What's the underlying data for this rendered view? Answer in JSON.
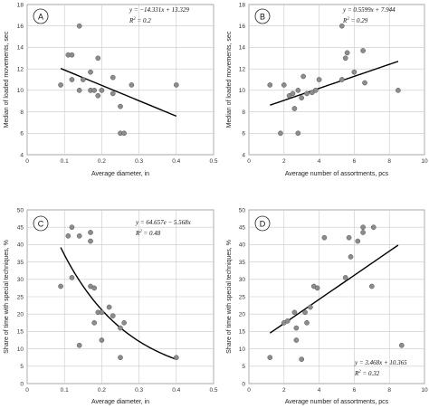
{
  "colors": {
    "points": "#8c8c8c",
    "fit_line": "#000000",
    "grid": "#c8c8c8"
  },
  "chart_data": [
    {
      "panel": "A",
      "type": "scatter",
      "xlabel": "Average diameter, in",
      "ylabel": "Median of loaded movements, sec",
      "xlim": [
        0,
        0.5
      ],
      "ylim": [
        4,
        18
      ],
      "xticks": [
        0,
        0.1,
        0.2,
        0.3,
        0.4,
        0.5
      ],
      "yticks": [
        4,
        6,
        8,
        10,
        12,
        14,
        16,
        18
      ],
      "grid": true,
      "points": [
        [
          0.09,
          10.5
        ],
        [
          0.11,
          13.3
        ],
        [
          0.12,
          13.3
        ],
        [
          0.12,
          11
        ],
        [
          0.14,
          16
        ],
        [
          0.14,
          10
        ],
        [
          0.15,
          11
        ],
        [
          0.17,
          11.7
        ],
        [
          0.17,
          10
        ],
        [
          0.18,
          10
        ],
        [
          0.19,
          13
        ],
        [
          0.19,
          9.5
        ],
        [
          0.2,
          10
        ],
        [
          0.23,
          11.2
        ],
        [
          0.23,
          9.7
        ],
        [
          0.25,
          8.5
        ],
        [
          0.25,
          6
        ],
        [
          0.26,
          6
        ],
        [
          0.28,
          10.5
        ],
        [
          0.4,
          10.5
        ]
      ],
      "fit": {
        "kind": "linear",
        "slope": -14.331,
        "intercept": 13.329,
        "x_range": [
          0.09,
          0.4
        ]
      },
      "equation": "y = −14.331x + 13.329",
      "r2_label": "R",
      "r2_exp": "2",
      "r2_value": " = 0.2",
      "legend_position": "top-right"
    },
    {
      "panel": "B",
      "type": "scatter",
      "xlabel": "Average number of assortments, pcs",
      "ylabel": "Median of loaded movements, sec",
      "xlim": [
        0,
        10
      ],
      "ylim": [
        4,
        18
      ],
      "xticks": [
        0,
        2,
        4,
        6,
        8,
        10
      ],
      "yticks": [
        4,
        6,
        8,
        10,
        12,
        14,
        16,
        18
      ],
      "grid": true,
      "points": [
        [
          1.2,
          10.5
        ],
        [
          1.8,
          6
        ],
        [
          2,
          10.5
        ],
        [
          2.3,
          9.5
        ],
        [
          2.5,
          9.7
        ],
        [
          2.6,
          8.3
        ],
        [
          2.8,
          6
        ],
        [
          2.8,
          10
        ],
        [
          3,
          9.3
        ],
        [
          3.1,
          11.3
        ],
        [
          3.3,
          9.7
        ],
        [
          3.6,
          9.8
        ],
        [
          3.8,
          10
        ],
        [
          4,
          11
        ],
        [
          5.3,
          16
        ],
        [
          5.3,
          11
        ],
        [
          5.5,
          13
        ],
        [
          5.6,
          13.5
        ],
        [
          6,
          11.7
        ],
        [
          6.5,
          13.7
        ],
        [
          6.6,
          10.7
        ],
        [
          8.5,
          10
        ]
      ],
      "fit": {
        "kind": "linear",
        "slope": 0.5599,
        "intercept": 7.944,
        "x_range": [
          1.2,
          8.5
        ]
      },
      "equation": "y = 0.5599x + 7.944",
      "r2_label": "R",
      "r2_exp": "2",
      "r2_value": " = 0.29",
      "legend_position": "top-right"
    },
    {
      "panel": "C",
      "type": "scatter",
      "xlabel": "Average diameter, in",
      "ylabel": "Share of time with special techniques, %",
      "xlim": [
        0,
        0.5
      ],
      "ylim": [
        0,
        50
      ],
      "xticks": [
        0,
        0.1,
        0.2,
        0.3,
        0.4,
        0.5
      ],
      "yticks": [
        0,
        5,
        10,
        15,
        20,
        25,
        30,
        35,
        40,
        45,
        50
      ],
      "grid": true,
      "points": [
        [
          0.09,
          28
        ],
        [
          0.11,
          42.5
        ],
        [
          0.12,
          45
        ],
        [
          0.12,
          30.5
        ],
        [
          0.14,
          42.5
        ],
        [
          0.14,
          11
        ],
        [
          0.17,
          43.5
        ],
        [
          0.17,
          41
        ],
        [
          0.17,
          28
        ],
        [
          0.18,
          27.5
        ],
        [
          0.18,
          17.5
        ],
        [
          0.19,
          20.5
        ],
        [
          0.2,
          12.5
        ],
        [
          0.2,
          20.5
        ],
        [
          0.22,
          22
        ],
        [
          0.23,
          19.5
        ],
        [
          0.25,
          7.5
        ],
        [
          0.25,
          16
        ],
        [
          0.26,
          17.5
        ],
        [
          0.4,
          7.5
        ]
      ],
      "fit": {
        "kind": "exponential",
        "a": 64.657,
        "b": -5.568,
        "x_range": [
          0.09,
          0.4
        ]
      },
      "equation": "y = 64.657e − 5.568x",
      "r2_label": "R",
      "r2_exp": "2",
      "r2_value": " = 0.48",
      "legend_position": "top-right"
    },
    {
      "panel": "D",
      "type": "scatter",
      "xlabel": "Average number of assortments, pcs",
      "ylabel": "Share of time with special techniques, %",
      "xlim": [
        0,
        10
      ],
      "ylim": [
        0,
        50
      ],
      "xticks": [
        0,
        2,
        4,
        6,
        8,
        10
      ],
      "yticks": [
        0,
        5,
        10,
        15,
        20,
        25,
        30,
        35,
        40,
        45,
        50
      ],
      "grid": true,
      "points": [
        [
          1.2,
          7.5
        ],
        [
          2,
          17.5
        ],
        [
          2.2,
          18
        ],
        [
          2.6,
          20.5
        ],
        [
          2.7,
          12.5
        ],
        [
          2.7,
          16
        ],
        [
          3,
          7
        ],
        [
          3.2,
          20.5
        ],
        [
          3.3,
          17.5
        ],
        [
          3.5,
          22
        ],
        [
          3.7,
          28
        ],
        [
          3.9,
          27.5
        ],
        [
          4.3,
          42
        ],
        [
          5.5,
          30.5
        ],
        [
          5.7,
          42
        ],
        [
          5.8,
          36.5
        ],
        [
          6.2,
          41
        ],
        [
          6.5,
          43.5
        ],
        [
          6.5,
          45
        ],
        [
          7,
          28
        ],
        [
          7.1,
          45
        ],
        [
          8.7,
          11
        ]
      ],
      "fit": {
        "kind": "linear",
        "slope": 3.468,
        "intercept": 10.365,
        "x_range": [
          1.2,
          8.5
        ]
      },
      "equation": "y = 3.468x + 10.365",
      "r2_label": "R",
      "r2_exp": "2",
      "r2_value": " = 0.32",
      "legend_position": "bottom-right"
    }
  ]
}
